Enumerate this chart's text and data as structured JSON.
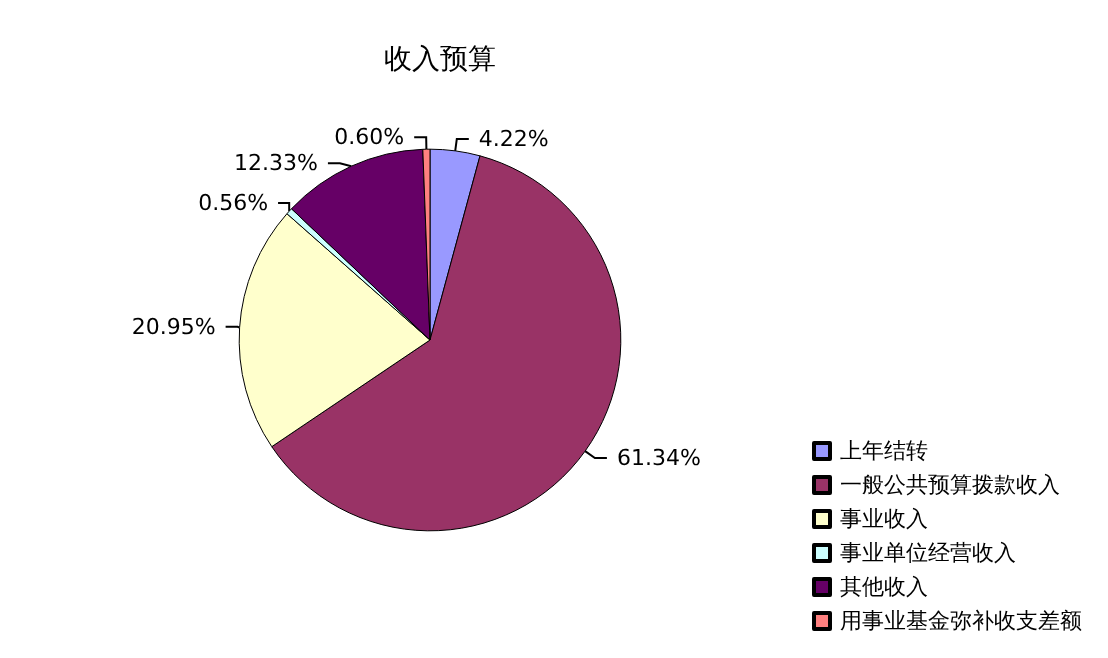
{
  "chart_data": {
    "type": "pie",
    "title": "收入预算",
    "categories": [
      "上年结转",
      "一般公共预算拨款收入",
      "事业收入",
      "事业单位经营收入",
      "其他收入",
      "用事业基金弥补收支差额"
    ],
    "values": [
      4.22,
      61.34,
      20.95,
      0.56,
      12.33,
      0.6
    ],
    "value_labels": [
      "4.22%",
      "61.34%",
      "20.95%",
      "0.56%",
      "12.33%",
      "0.60%"
    ],
    "colors": [
      "#9999ff",
      "#993366",
      "#ffffcc",
      "#ccffff",
      "#660066",
      "#ff8080"
    ],
    "legend": "bottom right"
  }
}
